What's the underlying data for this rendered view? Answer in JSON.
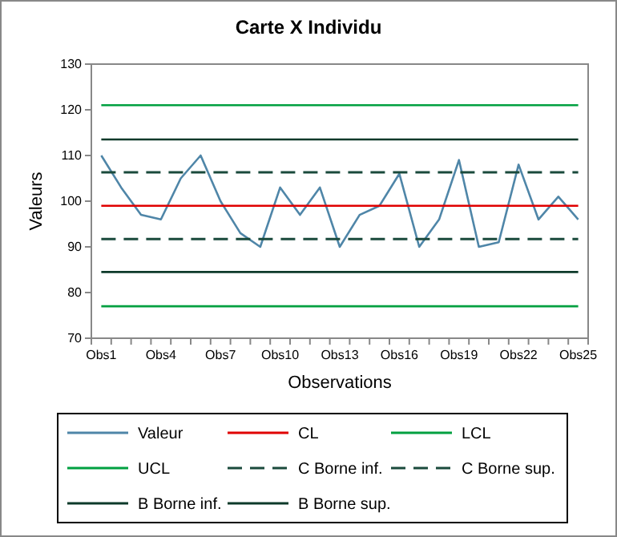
{
  "chart_data": {
    "type": "line",
    "title": "Carte X Individu",
    "xlabel": "Observations",
    "ylabel": "Valeurs",
    "categories": [
      "Obs1",
      null,
      null,
      "Obs4",
      null,
      null,
      "Obs7",
      null,
      null,
      "Obs10",
      null,
      null,
      "Obs13",
      null,
      null,
      "Obs16",
      null,
      null,
      "Obs19",
      null,
      null,
      "Obs22",
      null,
      null,
      "Obs25"
    ],
    "series": [
      {
        "name": "Valeur",
        "color": "#4f86a8",
        "values": [
          110,
          103,
          97,
          96,
          105,
          110,
          100,
          93,
          90,
          103,
          97,
          103,
          90,
          97,
          99,
          106,
          90,
          96,
          109,
          90,
          91,
          108,
          96,
          101,
          96
        ]
      },
      {
        "name": "CL",
        "color": "#e00000",
        "values": [
          99,
          99,
          99,
          99,
          99,
          99,
          99,
          99,
          99,
          99,
          99,
          99,
          99,
          99,
          99,
          99,
          99,
          99,
          99,
          99,
          99,
          99,
          99,
          99,
          99
        ]
      },
      {
        "name": "LCL",
        "color": "#00a040",
        "values": [
          77,
          77,
          77,
          77,
          77,
          77,
          77,
          77,
          77,
          77,
          77,
          77,
          77,
          77,
          77,
          77,
          77,
          77,
          77,
          77,
          77,
          77,
          77,
          77,
          77
        ]
      },
      {
        "name": "UCL",
        "color": "#00a040",
        "values": [
          121,
          121,
          121,
          121,
          121,
          121,
          121,
          121,
          121,
          121,
          121,
          121,
          121,
          121,
          121,
          121,
          121,
          121,
          121,
          121,
          121,
          121,
          121,
          121,
          121
        ]
      },
      {
        "name": "C Borne inf.",
        "color": "#1a4a3c",
        "line_style": "dashed",
        "values": [
          91.7,
          91.7,
          91.7,
          91.7,
          91.7,
          91.7,
          91.7,
          91.7,
          91.7,
          91.7,
          91.7,
          91.7,
          91.7,
          91.7,
          91.7,
          91.7,
          91.7,
          91.7,
          91.7,
          91.7,
          91.7,
          91.7,
          91.7,
          91.7,
          91.7
        ]
      },
      {
        "name": "C Borne sup.",
        "color": "#1a4a3c",
        "line_style": "dashed",
        "values": [
          106.3,
          106.3,
          106.3,
          106.3,
          106.3,
          106.3,
          106.3,
          106.3,
          106.3,
          106.3,
          106.3,
          106.3,
          106.3,
          106.3,
          106.3,
          106.3,
          106.3,
          106.3,
          106.3,
          106.3,
          106.3,
          106.3,
          106.3,
          106.3,
          106.3
        ]
      },
      {
        "name": "B Borne inf.",
        "color": "#0d3a2a",
        "values": [
          84.5,
          84.5,
          84.5,
          84.5,
          84.5,
          84.5,
          84.5,
          84.5,
          84.5,
          84.5,
          84.5,
          84.5,
          84.5,
          84.5,
          84.5,
          84.5,
          84.5,
          84.5,
          84.5,
          84.5,
          84.5,
          84.5,
          84.5,
          84.5,
          84.5
        ]
      },
      {
        "name": "B Borne sup.",
        "color": "#0d3a2a",
        "values": [
          113.5,
          113.5,
          113.5,
          113.5,
          113.5,
          113.5,
          113.5,
          113.5,
          113.5,
          113.5,
          113.5,
          113.5,
          113.5,
          113.5,
          113.5,
          113.5,
          113.5,
          113.5,
          113.5,
          113.5,
          113.5,
          113.5,
          113.5,
          113.5,
          113.5
        ]
      }
    ],
    "ylim": [
      70,
      130
    ],
    "yticks": [
      70,
      80,
      90,
      100,
      110,
      120,
      130
    ],
    "legend": "bottom",
    "grid": false
  }
}
